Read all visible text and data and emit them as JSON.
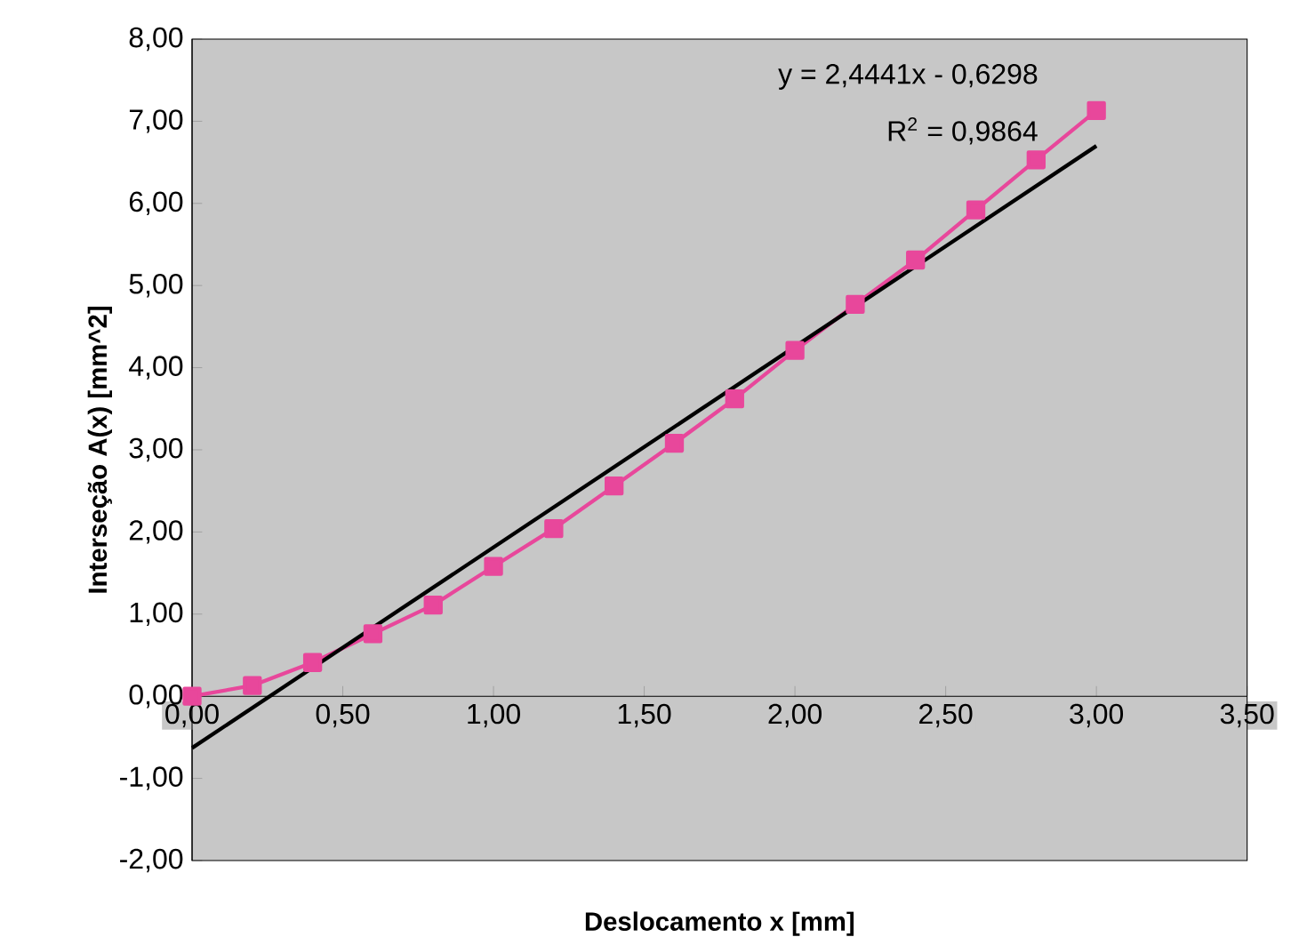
{
  "chart_data": {
    "type": "line",
    "xlabel": "Deslocamento x [mm]",
    "ylabel": "Interseção A(x) [mm^2]",
    "x": [
      0,
      0.2,
      0.4,
      0.6,
      0.8,
      1.0,
      1.2,
      1.4,
      1.6,
      1.8,
      2.0,
      2.2,
      2.4,
      2.6,
      2.8,
      3.0
    ],
    "series": [
      {
        "color": "#e8479b",
        "marker": "square",
        "values": [
          0.0,
          0.13,
          0.41,
          0.76,
          1.11,
          1.58,
          2.04,
          2.56,
          3.08,
          3.62,
          4.21,
          4.77,
          5.31,
          5.92,
          6.53,
          7.13
        ]
      },
      {
        "type": "line",
        "color": "#000000",
        "marker": "none",
        "x": [
          0,
          3.0
        ],
        "values": [
          -0.63,
          6.7
        ]
      }
    ],
    "annotations": [
      "y = 2,4441x - 0,6298",
      "R$^{2}$ = 0,9864"
    ],
    "xlim": [
      0,
      3.5
    ],
    "ylim": [
      -2,
      8
    ],
    "xticks": [
      {
        "value": 0,
        "label": "0,00"
      },
      {
        "value": 0.5,
        "label": "0,50"
      },
      {
        "value": 1.0,
        "label": "1,00"
      },
      {
        "value": 1.5,
        "label": "1,50"
      },
      {
        "value": 2.0,
        "label": "2,00"
      },
      {
        "value": 2.5,
        "label": "2,50"
      },
      {
        "value": 3.0,
        "label": "3,00"
      },
      {
        "value": 3.5,
        "label": "3,50"
      }
    ],
    "yticks": [
      {
        "value": -2,
        "label": "-2,00"
      },
      {
        "value": -1,
        "label": "-1,00"
      },
      {
        "value": 0,
        "label": "0,00"
      },
      {
        "value": 1,
        "label": "1,00"
      },
      {
        "value": 2,
        "label": "2,00"
      },
      {
        "value": 3,
        "label": "3,00"
      },
      {
        "value": 4,
        "label": "4,00"
      },
      {
        "value": 5,
        "label": "5,00"
      },
      {
        "value": 6,
        "label": "6,00"
      },
      {
        "value": 7,
        "label": "7,00"
      },
      {
        "value": 8,
        "label": "8,00"
      }
    ],
    "grid": false
  }
}
